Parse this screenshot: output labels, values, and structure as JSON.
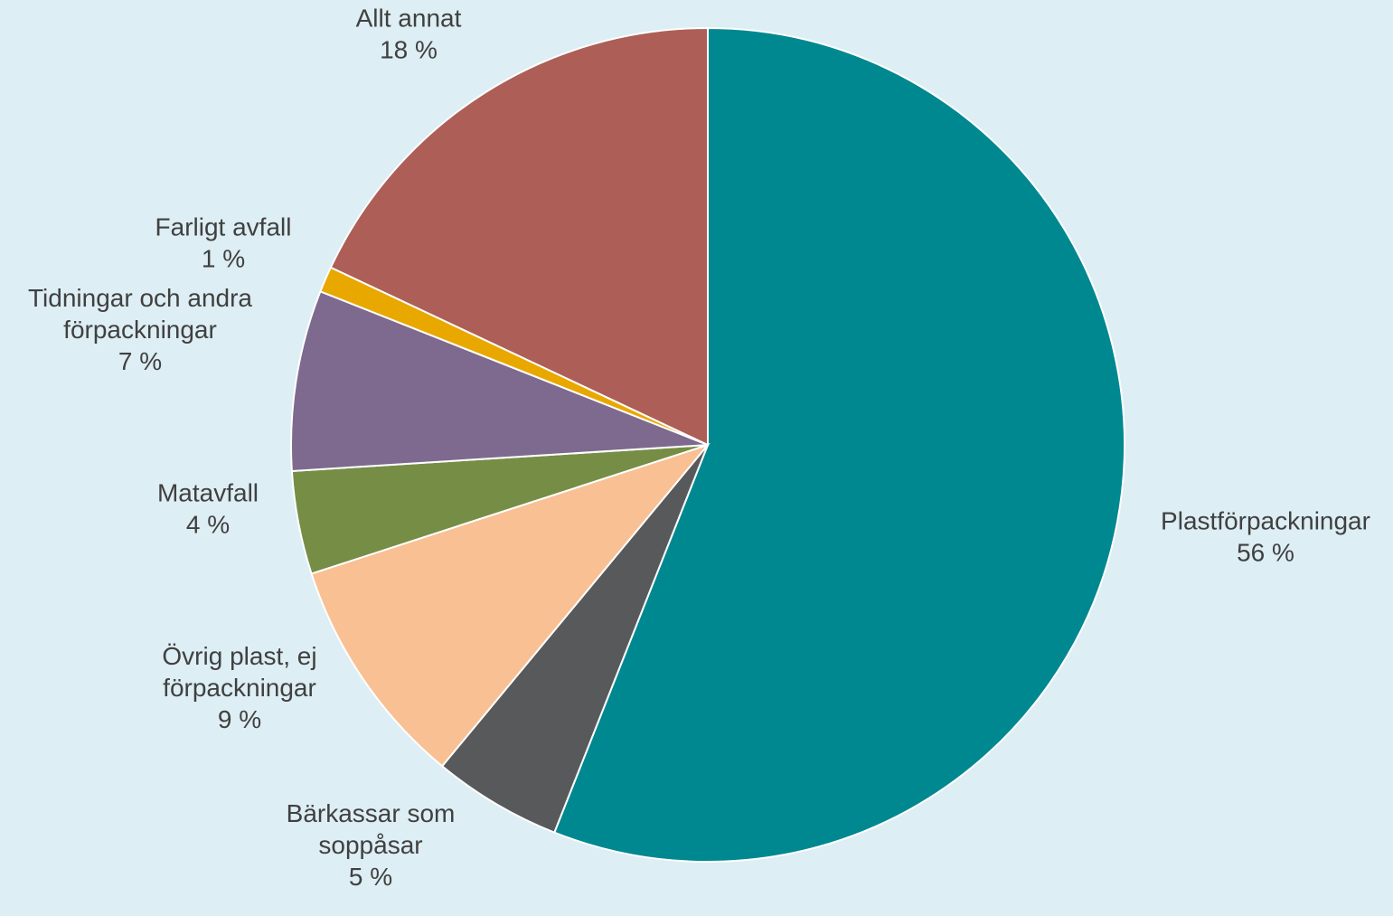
{
  "chart_data": {
    "type": "pie",
    "start_angle_deg": 0,
    "direction": "clockwise",
    "slices": [
      {
        "label_lines": [
          "Plastförpackningar"
        ],
        "value_label": "56 %",
        "value": 56,
        "color": "#008891"
      },
      {
        "label_lines": [
          "Bärkassar som",
          "soppåsar"
        ],
        "value_label": "5 %",
        "value": 5,
        "color": "#58595b"
      },
      {
        "label_lines": [
          "Övrig plast, ej",
          "förpackningar"
        ],
        "value_label": "9 %",
        "value": 9,
        "color": "#f9c094"
      },
      {
        "label_lines": [
          "Matavfall"
        ],
        "value_label": "4 %",
        "value": 4,
        "color": "#768d45"
      },
      {
        "label_lines": [
          "Tidningar och andra",
          "förpackningar"
        ],
        "value_label": "7 %",
        "value": 7,
        "color": "#7d6a8e"
      },
      {
        "label_lines": [
          "Farligt avfall"
        ],
        "value_label": "1 %",
        "value": 1,
        "color": "#e8a800"
      },
      {
        "label_lines": [
          "Allt annat"
        ],
        "value_label": "18 %",
        "value": 18,
        "color": "#ad5e57"
      }
    ]
  }
}
